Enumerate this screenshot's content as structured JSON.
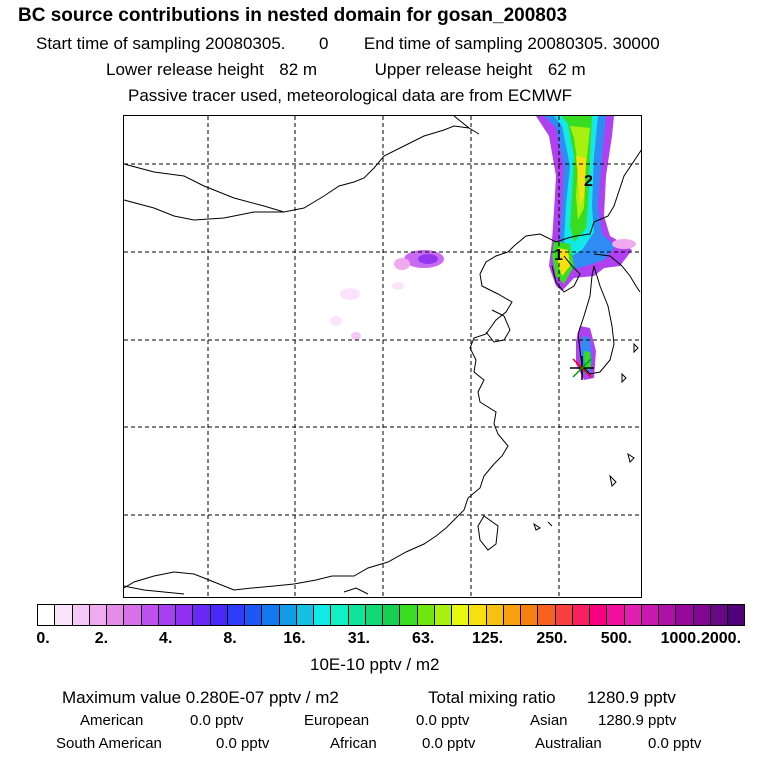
{
  "header": {
    "title": "BC  source contributions in nested domain for gosan_200803",
    "sampling_start_label": "Start time of sampling",
    "sampling_start": "20080305.",
    "sampling_start_time": "0",
    "sampling_end_label": "End time of sampling",
    "sampling_end": "20080305. 30000",
    "lower_release_label": "Lower release height",
    "lower_release": "82 m",
    "upper_release_label": "Upper release height",
    "upper_release": "62 m",
    "tracer_note": "Passive tracer used, meteorological data are from ECMWF"
  },
  "map": {
    "markers": [
      "1",
      "2"
    ],
    "receptor_icon": "star-asterisk-icon"
  },
  "colorbar": {
    "tick_labels": [
      "0.",
      "2.",
      "4.",
      "8.",
      "16.",
      "31.",
      "63.",
      "125.",
      "250.",
      "500.",
      "1000.",
      "2000."
    ],
    "colors": [
      "#ffffff",
      "#fbe4fb",
      "#f6c8f6",
      "#f0aaf0",
      "#e48ce8",
      "#d870e8",
      "#c050f0",
      "#a640f0",
      "#8f30f0",
      "#6a28f4",
      "#4a28f8",
      "#2f3cfb",
      "#1c58f7",
      "#1478f2",
      "#129ce8",
      "#14c0e4",
      "#12e8e6",
      "#10f0c4",
      "#10e49a",
      "#12d876",
      "#18d050",
      "#38dc20",
      "#6ee810",
      "#a8f010",
      "#e8f810",
      "#f8e010",
      "#f8c010",
      "#f8a010",
      "#f88010",
      "#f86020",
      "#f84040",
      "#f82060",
      "#f80080",
      "#f0109c",
      "#e020b0",
      "#c818b0",
      "#b010a8",
      "#98089c",
      "#800890",
      "#680884",
      "#500078"
    ],
    "units": "10E-10 pptv / m2"
  },
  "stats": {
    "max_label": "Maximum value",
    "max_value": "0.280E-07 pptv / m2",
    "total_label": "Total mixing ratio",
    "total_value": "1280.9 pptv",
    "regions": [
      {
        "name": "American",
        "value": "0.0 pptv"
      },
      {
        "name": "European",
        "value": "0.0 pptv"
      },
      {
        "name": "Asian",
        "value": "1280.9 pptv"
      },
      {
        "name": "South American",
        "value": "0.0 pptv"
      },
      {
        "name": "African",
        "value": "0.0 pptv"
      },
      {
        "name": "Australian",
        "value": "0.0 pptv"
      }
    ]
  }
}
